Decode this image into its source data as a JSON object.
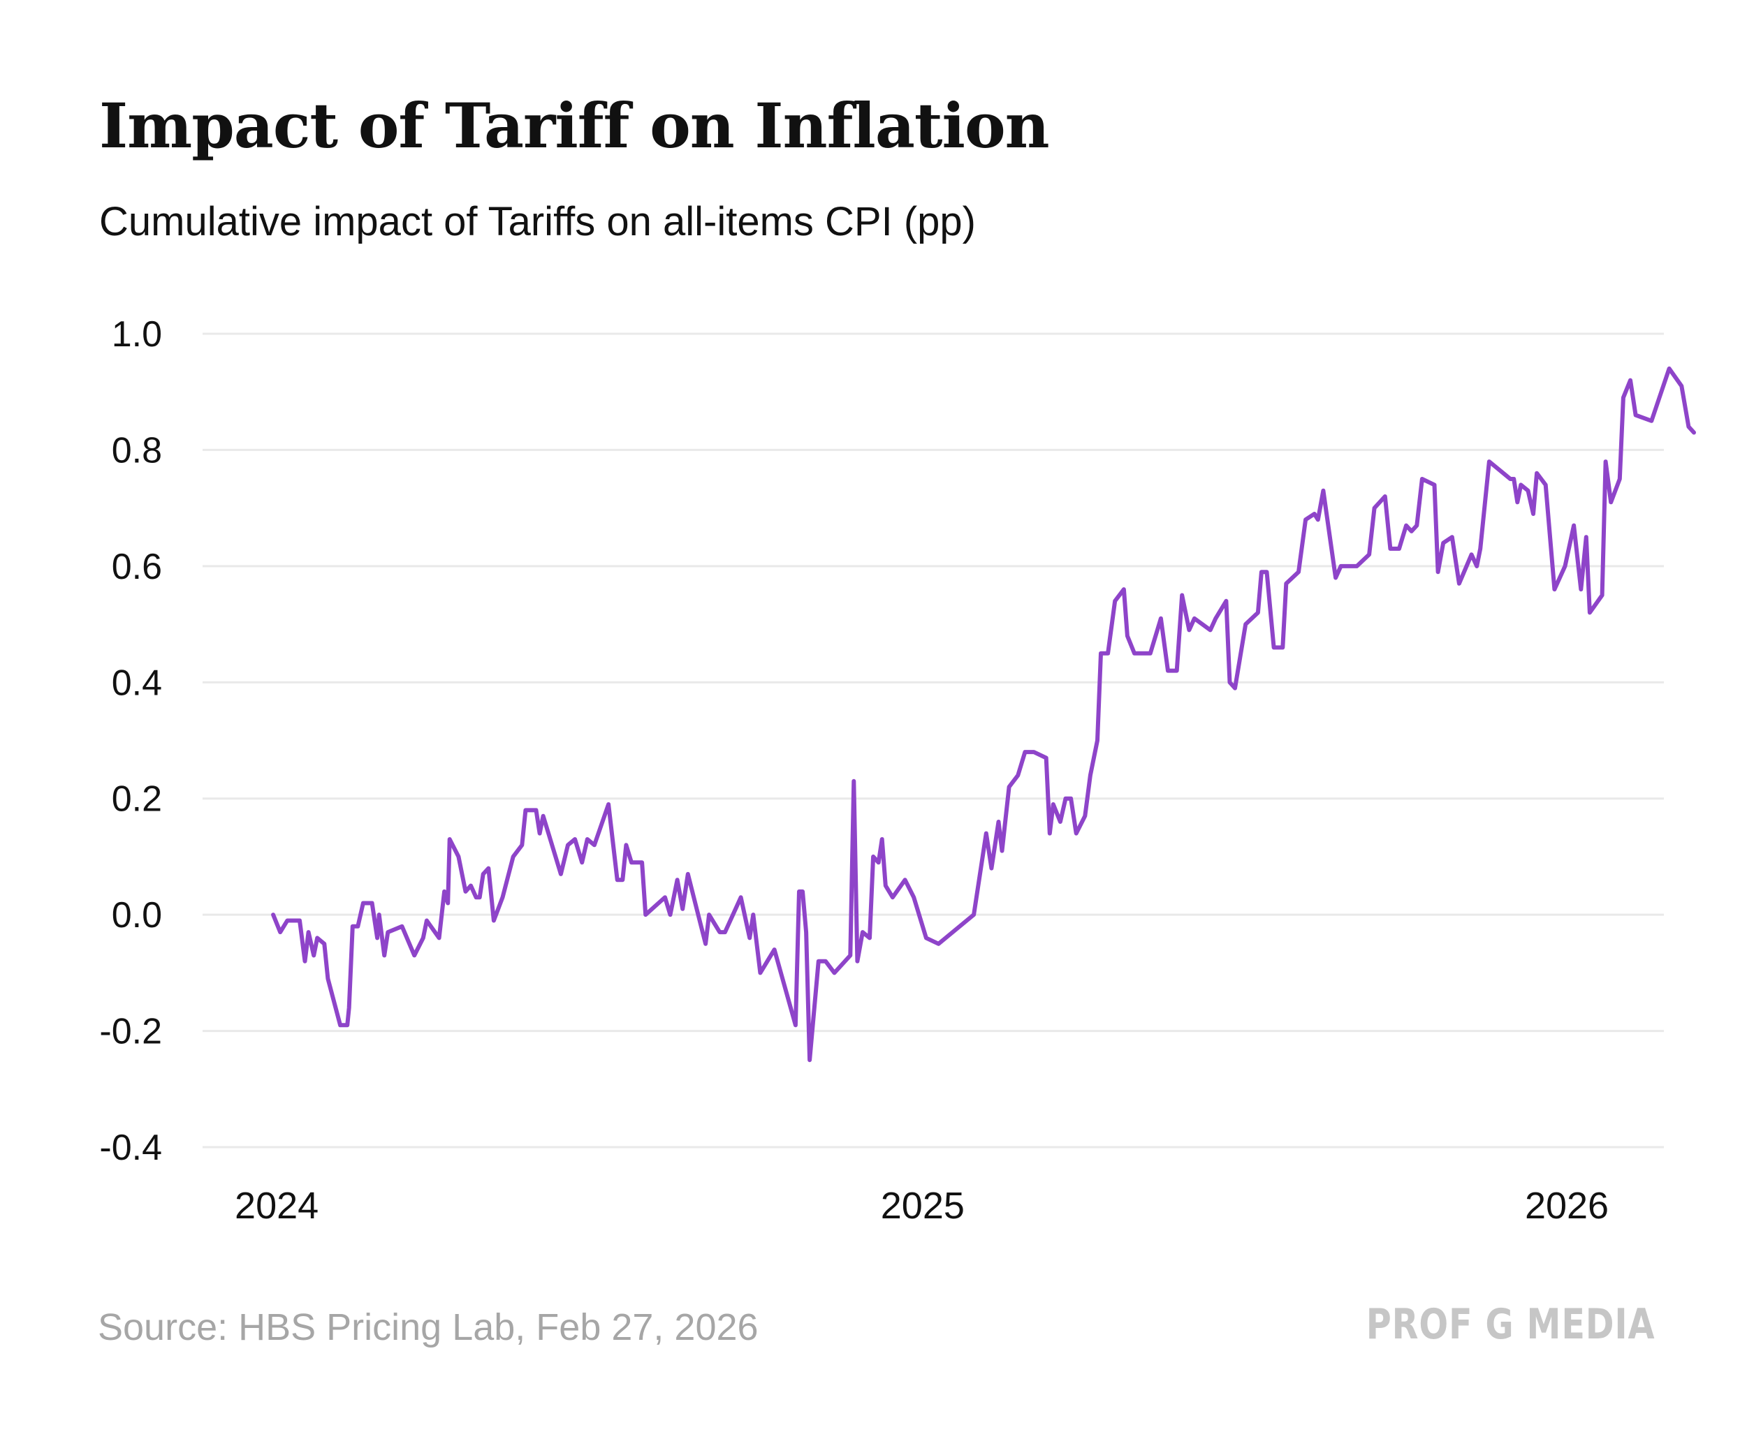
{
  "header": {
    "title": "Impact of Tariff on Inflation",
    "subtitle": "Cumulative impact of Tariffs on all-items CPI (pp)"
  },
  "footer": {
    "source": "Source: HBS Pricing Lab, Feb 27, 2026",
    "brand": "PROF G MEDIA"
  },
  "colors": {
    "line": "#8e44c9",
    "grid": "#e9e9e9",
    "text": "#111111"
  },
  "chart_data": {
    "type": "line",
    "title": "Impact of Tariff on Inflation",
    "subtitle": "Cumulative impact of Tariffs on all-items CPI (pp)",
    "xlabel": "",
    "ylabel": "",
    "ylim": [
      -0.4,
      1.0
    ],
    "yticks": [
      "1.0",
      "0.8",
      "0.6",
      "0.4",
      "0.2",
      "0.0",
      "-0.2",
      "-0.4"
    ],
    "xticks": [
      {
        "label": "2024",
        "date": "2024-01-01"
      },
      {
        "label": "2025",
        "date": "2025-01-01"
      },
      {
        "label": "2026",
        "date": "2026-01-01"
      }
    ],
    "xlim": [
      "2023-11-20",
      "2026-02-25"
    ],
    "grid": true,
    "legend": "none",
    "series": [
      {
        "color": "#8e44c9",
        "points": [
          [
            "2023-12-30",
            0.0
          ],
          [
            "2024-01-03",
            -0.03
          ],
          [
            "2024-01-07",
            -0.01
          ],
          [
            "2024-01-14",
            -0.01
          ],
          [
            "2024-01-17",
            -0.08
          ],
          [
            "2024-01-19",
            -0.03
          ],
          [
            "2024-01-22",
            -0.07
          ],
          [
            "2024-01-24",
            -0.04
          ],
          [
            "2024-01-28",
            -0.05
          ],
          [
            "2024-01-30",
            -0.11
          ],
          [
            "2024-02-06",
            -0.19
          ],
          [
            "2024-02-10",
            -0.19
          ],
          [
            "2024-02-11",
            -0.16
          ],
          [
            "2024-02-13",
            -0.02
          ],
          [
            "2024-02-16",
            -0.02
          ],
          [
            "2024-02-19",
            0.02
          ],
          [
            "2024-02-24",
            0.02
          ],
          [
            "2024-02-27",
            -0.04
          ],
          [
            "2024-02-28",
            0.0
          ],
          [
            "2024-03-02",
            -0.07
          ],
          [
            "2024-03-04",
            -0.03
          ],
          [
            "2024-03-12",
            -0.02
          ],
          [
            "2024-03-19",
            -0.07
          ],
          [
            "2024-03-24",
            -0.04
          ],
          [
            "2024-03-26",
            -0.01
          ],
          [
            "2024-04-02",
            -0.04
          ],
          [
            "2024-04-05",
            0.04
          ],
          [
            "2024-04-07",
            0.02
          ],
          [
            "2024-04-08",
            0.13
          ],
          [
            "2024-04-13",
            0.1
          ],
          [
            "2024-04-17",
            0.04
          ],
          [
            "2024-04-20",
            0.05
          ],
          [
            "2024-04-23",
            0.03
          ],
          [
            "2024-04-25",
            0.03
          ],
          [
            "2024-04-27",
            0.07
          ],
          [
            "2024-04-30",
            0.08
          ],
          [
            "2024-05-03",
            -0.01
          ],
          [
            "2024-05-08",
            0.03
          ],
          [
            "2024-05-14",
            0.1
          ],
          [
            "2024-05-19",
            0.12
          ],
          [
            "2024-05-21",
            0.18
          ],
          [
            "2024-05-27",
            0.18
          ],
          [
            "2024-05-29",
            0.14
          ],
          [
            "2024-05-31",
            0.17
          ],
          [
            "2024-06-03",
            0.14
          ],
          [
            "2024-06-10",
            0.07
          ],
          [
            "2024-06-14",
            0.12
          ],
          [
            "2024-06-18",
            0.13
          ],
          [
            "2024-06-22",
            0.09
          ],
          [
            "2024-06-25",
            0.13
          ],
          [
            "2024-06-29",
            0.12
          ],
          [
            "2024-07-07",
            0.19
          ],
          [
            "2024-07-12",
            0.06
          ],
          [
            "2024-07-15",
            0.06
          ],
          [
            "2024-07-17",
            0.12
          ],
          [
            "2024-07-20",
            0.09
          ],
          [
            "2024-07-23",
            0.09
          ],
          [
            "2024-07-26",
            0.09
          ],
          [
            "2024-07-28",
            0.0
          ],
          [
            "2024-08-08",
            0.03
          ],
          [
            "2024-08-11",
            0.0
          ],
          [
            "2024-08-15",
            0.06
          ],
          [
            "2024-08-18",
            0.01
          ],
          [
            "2024-08-21",
            0.07
          ],
          [
            "2024-08-26",
            0.01
          ],
          [
            "2024-08-31",
            -0.05
          ],
          [
            "2024-09-02",
            0.0
          ],
          [
            "2024-09-08",
            -0.03
          ],
          [
            "2024-09-11",
            -0.03
          ],
          [
            "2024-09-20",
            0.03
          ],
          [
            "2024-09-25",
            -0.04
          ],
          [
            "2024-09-27",
            0.0
          ],
          [
            "2024-10-01",
            -0.1
          ],
          [
            "2024-10-09",
            -0.06
          ],
          [
            "2024-10-21",
            -0.19
          ],
          [
            "2024-10-23",
            0.04
          ],
          [
            "2024-10-25",
            0.04
          ],
          [
            "2024-10-27",
            -0.03
          ],
          [
            "2024-10-29",
            -0.25
          ],
          [
            "2024-11-03",
            -0.08
          ],
          [
            "2024-11-07",
            -0.08
          ],
          [
            "2024-11-12",
            -0.1
          ],
          [
            "2024-11-21",
            -0.07
          ],
          [
            "2024-11-23",
            0.23
          ],
          [
            "2024-11-25",
            -0.08
          ],
          [
            "2024-11-28",
            -0.03
          ],
          [
            "2024-12-02",
            -0.04
          ],
          [
            "2024-12-04",
            0.1
          ],
          [
            "2024-12-07",
            0.09
          ],
          [
            "2024-12-09",
            0.13
          ],
          [
            "2024-12-11",
            0.05
          ],
          [
            "2024-12-15",
            0.03
          ],
          [
            "2024-12-22",
            0.06
          ],
          [
            "2024-12-27",
            0.03
          ],
          [
            "2025-01-03",
            -0.04
          ],
          [
            "2025-01-10",
            -0.05
          ],
          [
            "2025-01-30",
            0.0
          ],
          [
            "2025-02-06",
            0.14
          ],
          [
            "2025-02-09",
            0.08
          ],
          [
            "2025-02-13",
            0.16
          ],
          [
            "2025-02-15",
            0.11
          ],
          [
            "2025-02-19",
            0.22
          ],
          [
            "2025-02-24",
            0.24
          ],
          [
            "2025-02-28",
            0.28
          ],
          [
            "2025-03-05",
            0.28
          ],
          [
            "2025-03-12",
            0.27
          ],
          [
            "2025-03-14",
            0.14
          ],
          [
            "2025-03-16",
            0.19
          ],
          [
            "2025-03-20",
            0.16
          ],
          [
            "2025-03-23",
            0.2
          ],
          [
            "2025-03-26",
            0.2
          ],
          [
            "2025-03-29",
            0.14
          ],
          [
            "2025-04-03",
            0.17
          ],
          [
            "2025-04-06",
            0.24
          ],
          [
            "2025-04-10",
            0.3
          ],
          [
            "2025-04-12",
            0.45
          ],
          [
            "2025-04-16",
            0.45
          ],
          [
            "2025-04-20",
            0.54
          ],
          [
            "2025-04-25",
            0.56
          ],
          [
            "2025-04-27",
            0.48
          ],
          [
            "2025-05-01",
            0.45
          ],
          [
            "2025-05-10",
            0.45
          ],
          [
            "2025-05-16",
            0.51
          ],
          [
            "2025-05-20",
            0.42
          ],
          [
            "2025-05-25",
            0.42
          ],
          [
            "2025-05-28",
            0.55
          ],
          [
            "2025-06-01",
            0.49
          ],
          [
            "2025-06-04",
            0.51
          ],
          [
            "2025-06-13",
            0.49
          ],
          [
            "2025-06-16",
            0.51
          ],
          [
            "2025-06-22",
            0.54
          ],
          [
            "2025-06-24",
            0.4
          ],
          [
            "2025-06-27",
            0.39
          ],
          [
            "2025-07-03",
            0.5
          ],
          [
            "2025-07-10",
            0.52
          ],
          [
            "2025-07-12",
            0.59
          ],
          [
            "2025-07-15",
            0.59
          ],
          [
            "2025-07-19",
            0.46
          ],
          [
            "2025-07-24",
            0.46
          ],
          [
            "2025-07-26",
            0.57
          ],
          [
            "2025-08-02",
            0.59
          ],
          [
            "2025-08-06",
            0.68
          ],
          [
            "2025-08-11",
            0.69
          ],
          [
            "2025-08-13",
            0.68
          ],
          [
            "2025-08-16",
            0.73
          ],
          [
            "2025-08-23",
            0.58
          ],
          [
            "2025-08-26",
            0.6
          ],
          [
            "2025-09-04",
            0.6
          ],
          [
            "2025-09-11",
            0.62
          ],
          [
            "2025-09-14",
            0.7
          ],
          [
            "2025-09-20",
            0.72
          ],
          [
            "2025-09-23",
            0.63
          ],
          [
            "2025-09-28",
            0.63
          ],
          [
            "2025-10-02",
            0.67
          ],
          [
            "2025-10-05",
            0.66
          ],
          [
            "2025-10-08",
            0.67
          ],
          [
            "2025-10-11",
            0.75
          ],
          [
            "2025-10-18",
            0.74
          ],
          [
            "2025-10-20",
            0.59
          ],
          [
            "2025-10-23",
            0.64
          ],
          [
            "2025-10-28",
            0.65
          ],
          [
            "2025-11-01",
            0.57
          ],
          [
            "2025-11-08",
            0.62
          ],
          [
            "2025-11-11",
            0.6
          ],
          [
            "2025-11-13",
            0.63
          ],
          [
            "2025-11-18",
            0.78
          ],
          [
            "2025-11-30",
            0.75
          ],
          [
            "2025-12-02",
            0.75
          ],
          [
            "2025-12-04",
            0.71
          ],
          [
            "2025-12-06",
            0.74
          ],
          [
            "2025-12-10",
            0.73
          ],
          [
            "2025-12-13",
            0.69
          ],
          [
            "2025-12-15",
            0.76
          ],
          [
            "2025-12-20",
            0.74
          ],
          [
            "2025-12-25",
            0.56
          ],
          [
            "2025-12-31",
            0.6
          ],
          [
            "2026-01-05",
            0.67
          ],
          [
            "2026-01-09",
            0.56
          ],
          [
            "2026-01-12",
            0.65
          ],
          [
            "2026-01-14",
            0.52
          ],
          [
            "2026-01-21",
            0.55
          ],
          [
            "2026-01-23",
            0.78
          ],
          [
            "2026-01-26",
            0.71
          ],
          [
            "2026-01-31",
            0.75
          ],
          [
            "2026-02-02",
            0.89
          ],
          [
            "2026-02-06",
            0.92
          ],
          [
            "2026-02-09",
            0.86
          ],
          [
            "2026-02-18",
            0.85
          ],
          [
            "2026-02-28",
            0.94
          ],
          [
            "2026-03-07",
            0.91
          ],
          [
            "2026-03-11",
            0.84
          ],
          [
            "2026-03-14",
            0.83
          ]
        ]
      }
    ]
  }
}
